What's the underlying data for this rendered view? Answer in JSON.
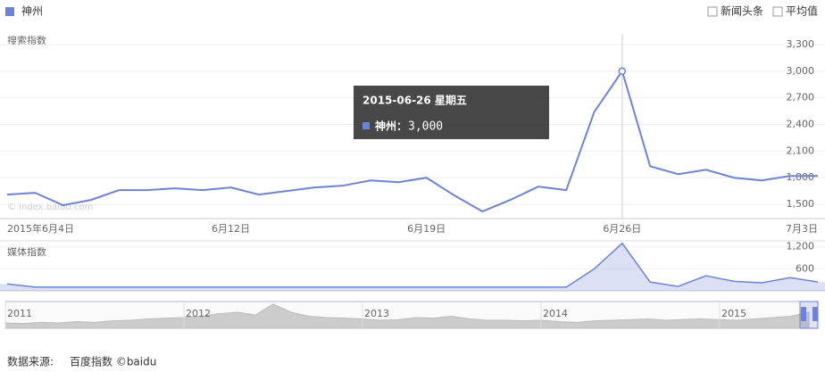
{
  "legend_checkboxes": [
    "新闻头条",
    "平均值"
  ],
  "watermark": "© index.baidu.com",
  "tooltip": {
    "title": "2015-06-26 星期五",
    "name": "神州：",
    "value": "3,000"
  },
  "footer": {
    "label": "数据来源:",
    "source": "百度指数 ©baidu"
  },
  "chart_data": [
    {
      "type": "line",
      "title": "搜索指数",
      "categories": [
        "2015年6月4日",
        null,
        null,
        null,
        null,
        null,
        null,
        null,
        "6月12日",
        null,
        null,
        null,
        null,
        null,
        null,
        "6月19日",
        null,
        null,
        null,
        null,
        null,
        null,
        "6月26日",
        null,
        null,
        null,
        null,
        null,
        null,
        "7月3日"
      ],
      "series": [
        {
          "name": "神州",
          "color": "#6e82d6",
          "values": [
            1610,
            1630,
            1490,
            1550,
            1660,
            1660,
            1680,
            1660,
            1690,
            1610,
            1650,
            1690,
            1710,
            1770,
            1750,
            1800,
            1600,
            1420,
            1550,
            1700,
            1660,
            2540,
            3000,
            1930,
            1840,
            1890,
            1800,
            1770,
            1820,
            1820
          ]
        }
      ],
      "ylim": [
        1340,
        3420
      ],
      "yticks": [
        {
          "value": 1500,
          "label": "1,500"
        },
        {
          "value": 1800,
          "label": "1,800"
        },
        {
          "value": 2100,
          "label": "2,100"
        },
        {
          "value": 2400,
          "label": "2,400"
        },
        {
          "value": 2700,
          "label": "2,700"
        },
        {
          "value": 3000,
          "label": "3,000"
        },
        {
          "value": 3300,
          "label": "3,300"
        }
      ],
      "grid": true
    },
    {
      "type": "area",
      "title": "媒体指数",
      "color": "#6e82d6",
      "values": [
        190,
        100,
        100,
        100,
        100,
        100,
        100,
        100,
        100,
        100,
        100,
        100,
        100,
        100,
        100,
        100,
        100,
        100,
        100,
        100,
        100,
        600,
        1300,
        240,
        120,
        410,
        260,
        220,
        360,
        240
      ],
      "ylim": [
        0,
        1340
      ],
      "yticks": [
        {
          "value": 600,
          "label": "600"
        },
        {
          "value": 1200,
          "label": "1,200"
        }
      ]
    },
    {
      "type": "navigator",
      "color": "#cccccc",
      "x": [
        2011.0,
        2011.1,
        2011.2,
        2011.3,
        2011.4,
        2011.5,
        2011.6,
        2011.7,
        2011.8,
        2011.9,
        2012.0,
        2012.1,
        2012.2,
        2012.3,
        2012.4,
        2012.5,
        2012.6,
        2012.7,
        2012.8,
        2012.9,
        2013.0,
        2013.1,
        2013.2,
        2013.3,
        2013.4,
        2013.5,
        2013.6,
        2013.7,
        2013.8,
        2013.9,
        2014.0,
        2014.1,
        2014.2,
        2014.3,
        2014.4,
        2014.5,
        2014.6,
        2014.7,
        2014.8,
        2014.9,
        2015.0,
        2015.1,
        2015.2,
        2015.3,
        2015.4,
        2015.5
      ],
      "values": [
        20,
        18,
        22,
        20,
        25,
        22,
        28,
        30,
        35,
        38,
        40,
        45,
        55,
        60,
        50,
        90,
        60,
        45,
        40,
        38,
        35,
        30,
        32,
        40,
        38,
        45,
        35,
        30,
        30,
        28,
        30,
        25,
        22,
        28,
        30,
        32,
        35,
        30,
        33,
        35,
        32,
        30,
        35,
        40,
        45,
        60
      ],
      "ylim": [
        0,
        100
      ],
      "xlim": [
        2011,
        2015.55
      ],
      "xticks": [
        2011,
        2012,
        2013,
        2014,
        2015
      ]
    }
  ]
}
